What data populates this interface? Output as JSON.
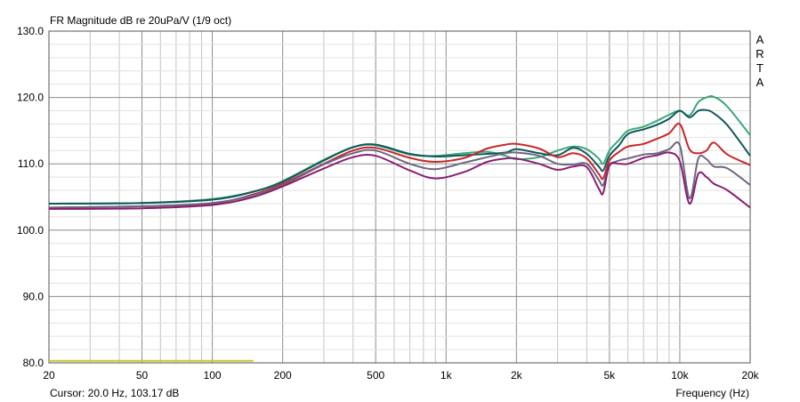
{
  "chart_data": {
    "type": "line",
    "title": "FR Magnitude dB re 20uPa/V (1/9 oct)",
    "watermark": "ARTA",
    "xlabel": "Frequency (Hz)",
    "cursor_text": "Cursor: 20.0 Hz, 103.17 dB",
    "x_scale": "log",
    "xlim": [
      20,
      20000
    ],
    "ylim": [
      80,
      130
    ],
    "x_ticks": [
      {
        "v": 20,
        "label": "20"
      },
      {
        "v": 50,
        "label": "50"
      },
      {
        "v": 100,
        "label": "100"
      },
      {
        "v": 200,
        "label": "200"
      },
      {
        "v": 500,
        "label": "500"
      },
      {
        "v": 1000,
        "label": "1k"
      },
      {
        "v": 2000,
        "label": "2k"
      },
      {
        "v": 5000,
        "label": "5k"
      },
      {
        "v": 10000,
        "label": "10k"
      },
      {
        "v": 20000,
        "label": "20k"
      }
    ],
    "y_ticks": [
      {
        "v": 80,
        "label": "80.0"
      },
      {
        "v": 90,
        "label": "90.0"
      },
      {
        "v": 100,
        "label": "100.0"
      },
      {
        "v": 110,
        "label": "110.0"
      },
      {
        "v": 120,
        "label": "120.0"
      },
      {
        "v": 130,
        "label": "130.0"
      }
    ],
    "grid": true,
    "series": [
      {
        "color": "#3aa878",
        "x": [
          20,
          50,
          100,
          150,
          200,
          300,
          400,
          500,
          700,
          900,
          1200,
          1500,
          1800,
          2000,
          2500,
          3000,
          3500,
          4000,
          4500,
          4700,
          5000,
          5500,
          6000,
          7000,
          8000,
          9000,
          10000,
          11000,
          12000,
          13000,
          14000,
          16000,
          20000
        ],
        "y": [
          104,
          104.1,
          104.7,
          105.8,
          107.4,
          110.6,
          112.5,
          112.8,
          111.4,
          111.2,
          111.6,
          111.8,
          111.2,
          110.7,
          111.0,
          112.0,
          112.6,
          112.2,
          110.8,
          110.0,
          112.0,
          113.6,
          115.0,
          115.6,
          116.5,
          117.4,
          118.0,
          117.3,
          119.3,
          120.0,
          120.1,
          118.6,
          114.3
        ]
      },
      {
        "color": "#10585c",
        "x": [
          20,
          50,
          100,
          150,
          200,
          300,
          400,
          500,
          700,
          900,
          1200,
          1500,
          1800,
          2000,
          2500,
          3000,
          3500,
          4000,
          4500,
          4700,
          5000,
          5500,
          6000,
          7000,
          8000,
          9000,
          10000,
          11000,
          12000,
          13000,
          14000,
          16000,
          20000
        ],
        "y": [
          104,
          104.1,
          104.6,
          105.8,
          107.3,
          110.5,
          112.5,
          112.9,
          111.5,
          111.1,
          111.3,
          111.5,
          111.7,
          112.2,
          111.6,
          111.3,
          112.4,
          111.5,
          109.6,
          109.0,
          111.2,
          112.8,
          114.5,
          115.2,
          115.9,
          116.8,
          118.0,
          117.0,
          118.0,
          118.1,
          117.6,
          115.8,
          111.2
        ]
      },
      {
        "color": "#c8282a",
        "x": [
          20,
          50,
          100,
          150,
          200,
          300,
          400,
          500,
          700,
          900,
          1200,
          1500,
          1800,
          2000,
          2500,
          3000,
          3500,
          4000,
          4500,
          4700,
          5000,
          5500,
          6000,
          7000,
          8000,
          9000,
          10000,
          11000,
          12000,
          13000,
          14000,
          16000,
          20000
        ],
        "y": [
          103.4,
          103.6,
          104.0,
          105.4,
          107.0,
          110.0,
          112.0,
          112.4,
          110.9,
          110.3,
          110.9,
          112.3,
          112.9,
          113.0,
          112.3,
          111.0,
          111.6,
          110.8,
          108.5,
          107.8,
          110.5,
          111.8,
          112.6,
          113.0,
          113.8,
          114.6,
          116.0,
          112.2,
          111.6,
          112.0,
          113.2,
          111.4,
          109.8
        ]
      },
      {
        "color": "#6c6680",
        "x": [
          20,
          50,
          100,
          150,
          200,
          300,
          400,
          500,
          700,
          900,
          1200,
          1500,
          1800,
          2000,
          2500,
          3000,
          3500,
          4000,
          4500,
          4700,
          5000,
          5500,
          6000,
          7000,
          8000,
          9000,
          10000,
          11000,
          12000,
          13000,
          14000,
          16000,
          20000
        ],
        "y": [
          103.4,
          103.6,
          104.1,
          105.3,
          106.8,
          109.9,
          111.6,
          112.0,
          110.0,
          109.2,
          110.2,
          111.0,
          111.6,
          111.7,
          111.2,
          110.0,
          109.9,
          110.0,
          107.6,
          106.8,
          109.7,
          110.5,
          110.8,
          111.4,
          111.6,
          112.2,
          112.8,
          104.8,
          110.8,
          110.7,
          109.6,
          109.3,
          106.8
        ]
      },
      {
        "color": "#8a1e72",
        "x": [
          20,
          50,
          100,
          150,
          200,
          300,
          400,
          500,
          700,
          900,
          1200,
          1500,
          1800,
          2000,
          2500,
          3000,
          3500,
          4000,
          4500,
          4700,
          5000,
          5500,
          6000,
          7000,
          8000,
          9000,
          10000,
          11000,
          12000,
          13000,
          14000,
          16000,
          20000
        ],
        "y": [
          103.2,
          103.3,
          103.8,
          105.0,
          106.6,
          109.3,
          111.0,
          111.2,
          109.0,
          107.8,
          108.8,
          110.3,
          110.8,
          110.8,
          110.0,
          109.1,
          109.6,
          109.5,
          106.3,
          105.6,
          109.8,
          110.0,
          110.0,
          110.9,
          111.3,
          111.7,
          110.4,
          104.0,
          108.5,
          108.0,
          107.0,
          106.0,
          103.4
        ]
      }
    ],
    "marker": {
      "color": "#c8c832",
      "x_start": 20,
      "x_end": 150,
      "y": 80.3
    }
  }
}
